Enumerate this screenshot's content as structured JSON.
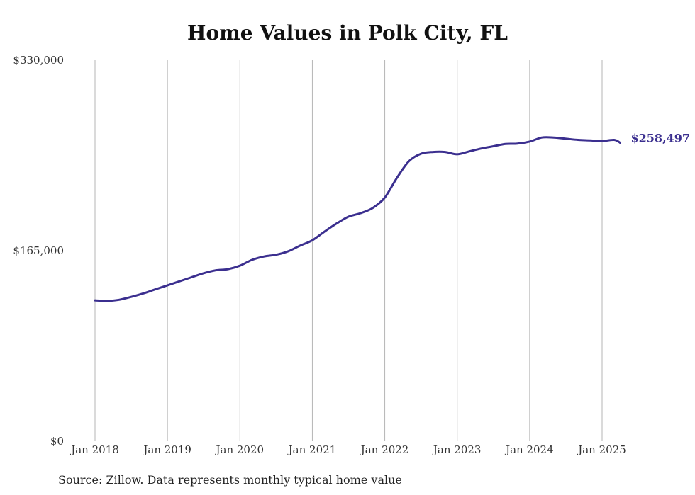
{
  "chart_data": {
    "type": "line",
    "title": "Home Values in Polk City, FL",
    "source": "Source: Zillow. Data represents monthly typical home value",
    "xlabel": "",
    "ylabel": "",
    "ylim": [
      0,
      330000
    ],
    "y_ticks": [
      {
        "value": 0,
        "label": "$0"
      },
      {
        "value": 165000,
        "label": "$165,000"
      },
      {
        "value": 330000,
        "label": "$330,000"
      }
    ],
    "x_ticks": [
      {
        "value": "2018-01",
        "label": "Jan 2018"
      },
      {
        "value": "2019-01",
        "label": "Jan 2019"
      },
      {
        "value": "2020-01",
        "label": "Jan 2020"
      },
      {
        "value": "2021-01",
        "label": "Jan 2021"
      },
      {
        "value": "2022-01",
        "label": "Jan 2022"
      },
      {
        "value": "2023-01",
        "label": "Jan 2023"
      },
      {
        "value": "2024-01",
        "label": "Jan 2024"
      },
      {
        "value": "2025-01",
        "label": "Jan 2025"
      }
    ],
    "vertical_grid": true,
    "line_color": "#3b2f8f",
    "end_label": "$258,497",
    "series": [
      {
        "x": [
          "2018-01",
          "2018-03",
          "2018-05",
          "2018-07",
          "2018-09",
          "2018-11",
          "2019-01",
          "2019-03",
          "2019-05",
          "2019-07",
          "2019-09",
          "2019-11",
          "2020-01",
          "2020-03",
          "2020-05",
          "2020-07",
          "2020-09",
          "2020-11",
          "2021-01",
          "2021-03",
          "2021-05",
          "2021-07",
          "2021-09",
          "2021-11",
          "2022-01",
          "2022-03",
          "2022-05",
          "2022-07",
          "2022-09",
          "2022-11",
          "2023-01",
          "2023-03",
          "2023-05",
          "2023-07",
          "2023-09",
          "2023-11",
          "2024-01",
          "2024-03",
          "2024-05",
          "2024-07",
          "2024-09",
          "2024-11",
          "2025-01",
          "2025-03",
          "2025-04"
        ],
        "values": [
          122000,
          121500,
          122500,
          125000,
          128000,
          131500,
          135000,
          138500,
          142000,
          145500,
          148000,
          149000,
          152000,
          157000,
          160000,
          161500,
          164500,
          169500,
          174000,
          181500,
          188500,
          194500,
          197500,
          202000,
          211000,
          228000,
          242500,
          249000,
          250500,
          250500,
          248500,
          251000,
          253500,
          255500,
          257500,
          257800,
          259500,
          263000,
          263000,
          262000,
          261000,
          260500,
          260000,
          261000,
          258497
        ]
      }
    ]
  }
}
